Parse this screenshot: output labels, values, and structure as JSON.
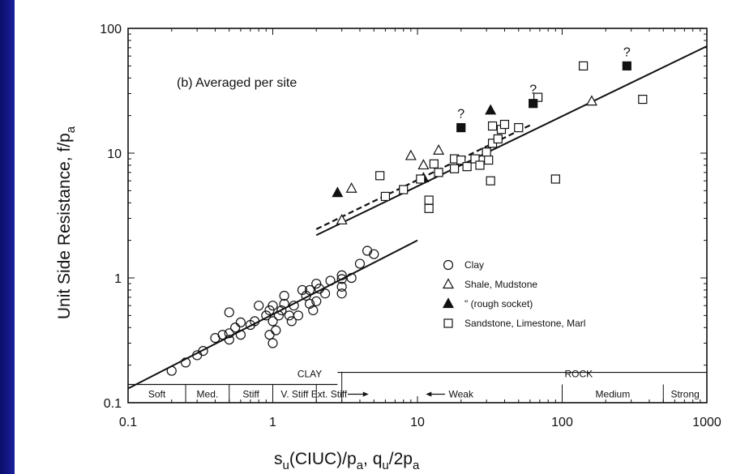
{
  "chart_data": {
    "type": "scatter",
    "annotation": "(b)  Averaged per site",
    "ylabel": "Unit Side Resistance, f/p",
    "ylabel_sub": "a",
    "xlabel": {
      "p1": "s",
      "p1_sub": "u",
      "p2": "(CIUC)/p",
      "p2_sub": "a",
      "p3": ",  q",
      "p3_sub": "u",
      "p4": "/2p",
      "p4_sub": "a"
    },
    "x_scale": "log",
    "y_scale": "log",
    "xlim": [
      0.1,
      1000
    ],
    "ylim": [
      0.1,
      100
    ],
    "x_ticks": [
      {
        "value": 0.1,
        "label": "0.1"
      },
      {
        "value": 1,
        "label": "1"
      },
      {
        "value": 10,
        "label": "10"
      },
      {
        "value": 100,
        "label": "100"
      },
      {
        "value": 1000,
        "label": "1000"
      }
    ],
    "y_ticks": [
      {
        "value": 0.1,
        "label": "0.1"
      },
      {
        "value": 1,
        "label": "1"
      },
      {
        "value": 10,
        "label": "10"
      },
      {
        "value": 100,
        "label": "100"
      }
    ],
    "legend": {
      "position": "middle-right",
      "entries": [
        {
          "marker": "circle-open",
          "label": "Clay"
        },
        {
          "marker": "triangle-open",
          "label": "Shale, Mudstone"
        },
        {
          "marker": "triangle-filled",
          "label": "\"    (rough socket)"
        },
        {
          "marker": "square-open",
          "label": "Sandstone, Limestone, Marl"
        }
      ]
    },
    "series": [
      {
        "marker": "circle-open",
        "points": [
          [
            0.2,
            0.18
          ],
          [
            0.25,
            0.21
          ],
          [
            0.3,
            0.24
          ],
          [
            0.33,
            0.26
          ],
          [
            0.4,
            0.33
          ],
          [
            0.45,
            0.35
          ],
          [
            0.5,
            0.32
          ],
          [
            0.5,
            0.36
          ],
          [
            0.5,
            0.53
          ],
          [
            0.55,
            0.4
          ],
          [
            0.6,
            0.35
          ],
          [
            0.6,
            0.44
          ],
          [
            0.7,
            0.42
          ],
          [
            0.75,
            0.45
          ],
          [
            0.8,
            0.6
          ],
          [
            0.9,
            0.5
          ],
          [
            0.95,
            0.35
          ],
          [
            0.95,
            0.55
          ],
          [
            1.0,
            0.3
          ],
          [
            1.0,
            0.45
          ],
          [
            1.0,
            0.6
          ],
          [
            1.05,
            0.38
          ],
          [
            1.1,
            0.5
          ],
          [
            1.15,
            0.55
          ],
          [
            1.2,
            0.72
          ],
          [
            1.2,
            0.62
          ],
          [
            1.3,
            0.5
          ],
          [
            1.35,
            0.45
          ],
          [
            1.4,
            0.6
          ],
          [
            1.5,
            0.5
          ],
          [
            1.6,
            0.8
          ],
          [
            1.7,
            0.72
          ],
          [
            1.8,
            0.8
          ],
          [
            1.8,
            0.62
          ],
          [
            1.9,
            0.55
          ],
          [
            2.0,
            0.9
          ],
          [
            2.0,
            0.65
          ],
          [
            2.1,
            0.82
          ],
          [
            2.3,
            0.75
          ],
          [
            2.5,
            0.95
          ],
          [
            3.0,
            0.75
          ],
          [
            3.0,
            0.85
          ],
          [
            3.0,
            0.98
          ],
          [
            3.0,
            1.05
          ],
          [
            3.5,
            1.0
          ],
          [
            4.0,
            1.3
          ],
          [
            4.5,
            1.65
          ],
          [
            5.0,
            1.55
          ]
        ]
      },
      {
        "marker": "triangle-open",
        "points": [
          [
            3.0,
            2.9
          ],
          [
            3.5,
            5.2
          ],
          [
            9.0,
            9.5
          ],
          [
            11.0,
            8.0
          ],
          [
            14.0,
            10.5
          ],
          [
            160.0,
            26.0
          ]
        ]
      },
      {
        "marker": "triangle-filled",
        "points": [
          [
            2.8,
            4.8
          ],
          [
            11.0,
            6.3
          ],
          [
            32.0,
            22.0
          ]
        ]
      },
      {
        "marker": "square-open",
        "points": [
          [
            5.5,
            6.6
          ],
          [
            6.0,
            4.5
          ],
          [
            8.0,
            5.1
          ],
          [
            10.5,
            6.2
          ],
          [
            12.0,
            4.2
          ],
          [
            12.0,
            3.6
          ],
          [
            13.0,
            8.2
          ],
          [
            14.0,
            7.0
          ],
          [
            18.0,
            7.5
          ],
          [
            18.0,
            9.0
          ],
          [
            20.0,
            8.8
          ],
          [
            22.0,
            7.8
          ],
          [
            25.0,
            9.0
          ],
          [
            27.0,
            8.0
          ],
          [
            30.0,
            10.2
          ],
          [
            31.0,
            8.8
          ],
          [
            32.0,
            6.0
          ],
          [
            33.0,
            16.5
          ],
          [
            33.0,
            12.0
          ],
          [
            36.0,
            13.0
          ],
          [
            38.0,
            15.5
          ],
          [
            40.0,
            17.0
          ],
          [
            50.0,
            16.0
          ],
          [
            68.0,
            28.0
          ],
          [
            90.0,
            6.2
          ],
          [
            140.0,
            50.0
          ],
          [
            360.0,
            27.0
          ]
        ]
      },
      {
        "marker": "square-filled",
        "points": [
          [
            20.0,
            16.0
          ],
          [
            63.0,
            25.0
          ],
          [
            280.0,
            50.0
          ]
        ]
      }
    ],
    "question_marks": [
      {
        "x": 20.0,
        "y": 16.0,
        "text": "?"
      },
      {
        "x": 63.0,
        "y": 25.0,
        "text": "?"
      },
      {
        "x": 280.0,
        "y": 50.0,
        "text": "?"
      }
    ],
    "fit_lines": [
      {
        "style": "solid",
        "from": [
          0.1,
          0.13
        ],
        "to": [
          10.0,
          2.0
        ]
      },
      {
        "style": "solid",
        "from": [
          2.0,
          2.2
        ],
        "to": [
          1000.0,
          72.0
        ]
      },
      {
        "style": "dashed",
        "from": [
          2.0,
          2.35
        ],
        "to": [
          60.0,
          16.0
        ]
      }
    ],
    "classification_bar": {
      "top_labels": [
        {
          "text": "CLAY",
          "x": 1.8
        },
        {
          "text": "ROCK",
          "x": 130.0
        }
      ],
      "row_y": [
        0.14,
        0.1
      ],
      "rock_line": {
        "from": 2.8,
        "to": 1000.0
      },
      "boxes": [
        {
          "label": "Soft",
          "from": 0.1,
          "to": 0.25
        },
        {
          "label": "Med.",
          "from": 0.25,
          "to": 0.5
        },
        {
          "label": "Stiff",
          "from": 0.5,
          "to": 1.0
        },
        {
          "label": "V. Stiff",
          "from": 1.0,
          "to": 2.0
        },
        {
          "label": "Ext. Stiff",
          "from": 2.0,
          "to": 3.0
        },
        {
          "label": "Weak",
          "from": 3.0,
          "to": 100.0
        },
        {
          "label": "Medium",
          "from": 100.0,
          "to": 500.0
        },
        {
          "label": "Strong",
          "from": 500.0,
          "to": 1000.0
        }
      ]
    }
  }
}
